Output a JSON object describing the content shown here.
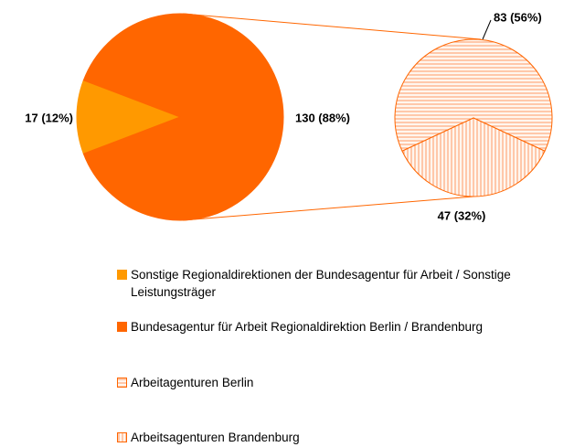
{
  "chart_data": {
    "type": "pie",
    "categories": [
      "Sonstige Regionaldirektionen der Bundesagentur für Arbeit / Sonstige Leistungsträger",
      "Bundesagentur für Arbeit Regionaldirektion Berlin / Brandenburg"
    ],
    "values": [
      17,
      130
    ],
    "value_labels": [
      "17 (12%)",
      "130 (88%)"
    ],
    "colors": [
      "#ff9900",
      "#ff6600"
    ],
    "secondary": {
      "categories": [
        "Arbeitagenturen Berlin",
        "Arbeitsagenturen Brandenburg"
      ],
      "values": [
        83,
        47
      ],
      "value_labels": [
        "83 (56%)",
        "47 (32%)"
      ],
      "patterns": [
        "horizontal",
        "vertical"
      ],
      "color": "#ff6600"
    }
  }
}
